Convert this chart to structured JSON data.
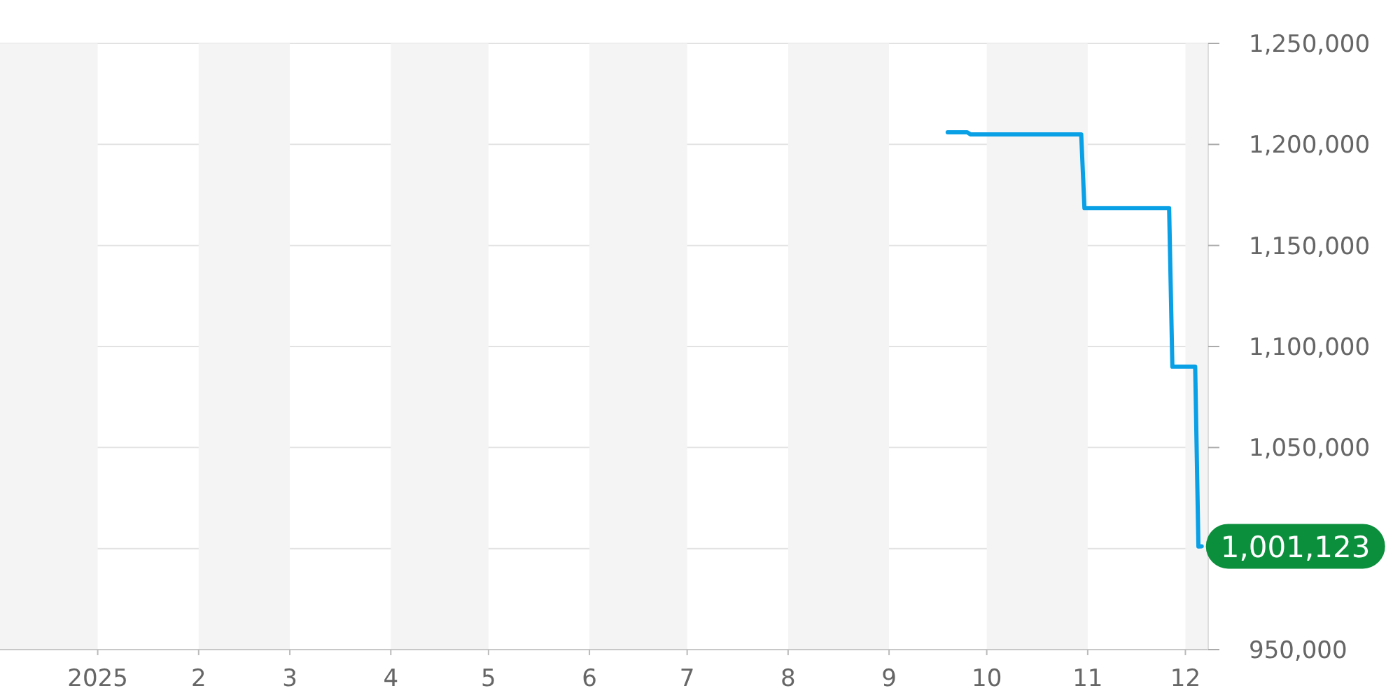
{
  "chart_data": {
    "type": "line",
    "x": [
      "2025-09-19",
      "2025-09-25",
      "2025-09-26",
      "2025-10-30",
      "2025-10-31",
      "2025-11-26",
      "2025-11-27",
      "2025-12-04",
      "2025-12-05",
      "2025-12-06"
    ],
    "series": [
      {
        "color": "#0aa0e6",
        "values": [
          1206000,
          1206000,
          1205000,
          1205000,
          1168500,
          1168500,
          1090000,
          1090000,
          1001000,
          1001123
        ],
        "value_labels": [
          null,
          null,
          null,
          null,
          null,
          null,
          null,
          null,
          null,
          "1,001,123"
        ]
      }
    ],
    "xlim": [
      "2024-12-02",
      "2025-12-08"
    ],
    "xticks": [
      {
        "value": "2025-01-01",
        "label": "2025"
      },
      {
        "value": "2025-02-01",
        "label": "2"
      },
      {
        "value": "2025-03-01",
        "label": "3"
      },
      {
        "value": "2025-04-01",
        "label": "4"
      },
      {
        "value": "2025-05-01",
        "label": "5"
      },
      {
        "value": "2025-06-01",
        "label": "6"
      },
      {
        "value": "2025-07-01",
        "label": "7"
      },
      {
        "value": "2025-08-01",
        "label": "8"
      },
      {
        "value": "2025-09-01",
        "label": "9"
      },
      {
        "value": "2025-10-01",
        "label": "10"
      },
      {
        "value": "2025-11-01",
        "label": "11"
      },
      {
        "value": "2025-12-01",
        "label": "12"
      }
    ],
    "ylim": [
      950000,
      1250000
    ],
    "yticks": [
      {
        "value": 950000,
        "label": "950,000"
      },
      {
        "value": 1000000,
        "label": null
      },
      {
        "value": 1050000,
        "label": "1,050,000"
      },
      {
        "value": 1100000,
        "label": "1,100,000"
      },
      {
        "value": 1150000,
        "label": "1,150,000"
      },
      {
        "value": 1200000,
        "label": "1,200,000"
      },
      {
        "value": 1250000,
        "label": "1,250,000"
      }
    ],
    "grid": "y",
    "marker": "none",
    "bands": [
      {
        "axis": "x",
        "from": "2024-12-02",
        "to": "2025-01-01",
        "color": "#f4f4f4"
      },
      {
        "axis": "x",
        "from": "2025-02-01",
        "to": "2025-03-01",
        "color": "#f4f4f4"
      },
      {
        "axis": "x",
        "from": "2025-04-01",
        "to": "2025-05-01",
        "color": "#f4f4f4"
      },
      {
        "axis": "x",
        "from": "2025-06-01",
        "to": "2025-07-01",
        "color": "#f4f4f4"
      },
      {
        "axis": "x",
        "from": "2025-08-01",
        "to": "2025-09-01",
        "color": "#f4f4f4"
      },
      {
        "axis": "x",
        "from": "2025-10-01",
        "to": "2025-11-01",
        "color": "#f4f4f4"
      },
      {
        "axis": "x",
        "from": "2025-12-01",
        "to": "2025-12-08",
        "color": "#f4f4f4"
      }
    ]
  }
}
